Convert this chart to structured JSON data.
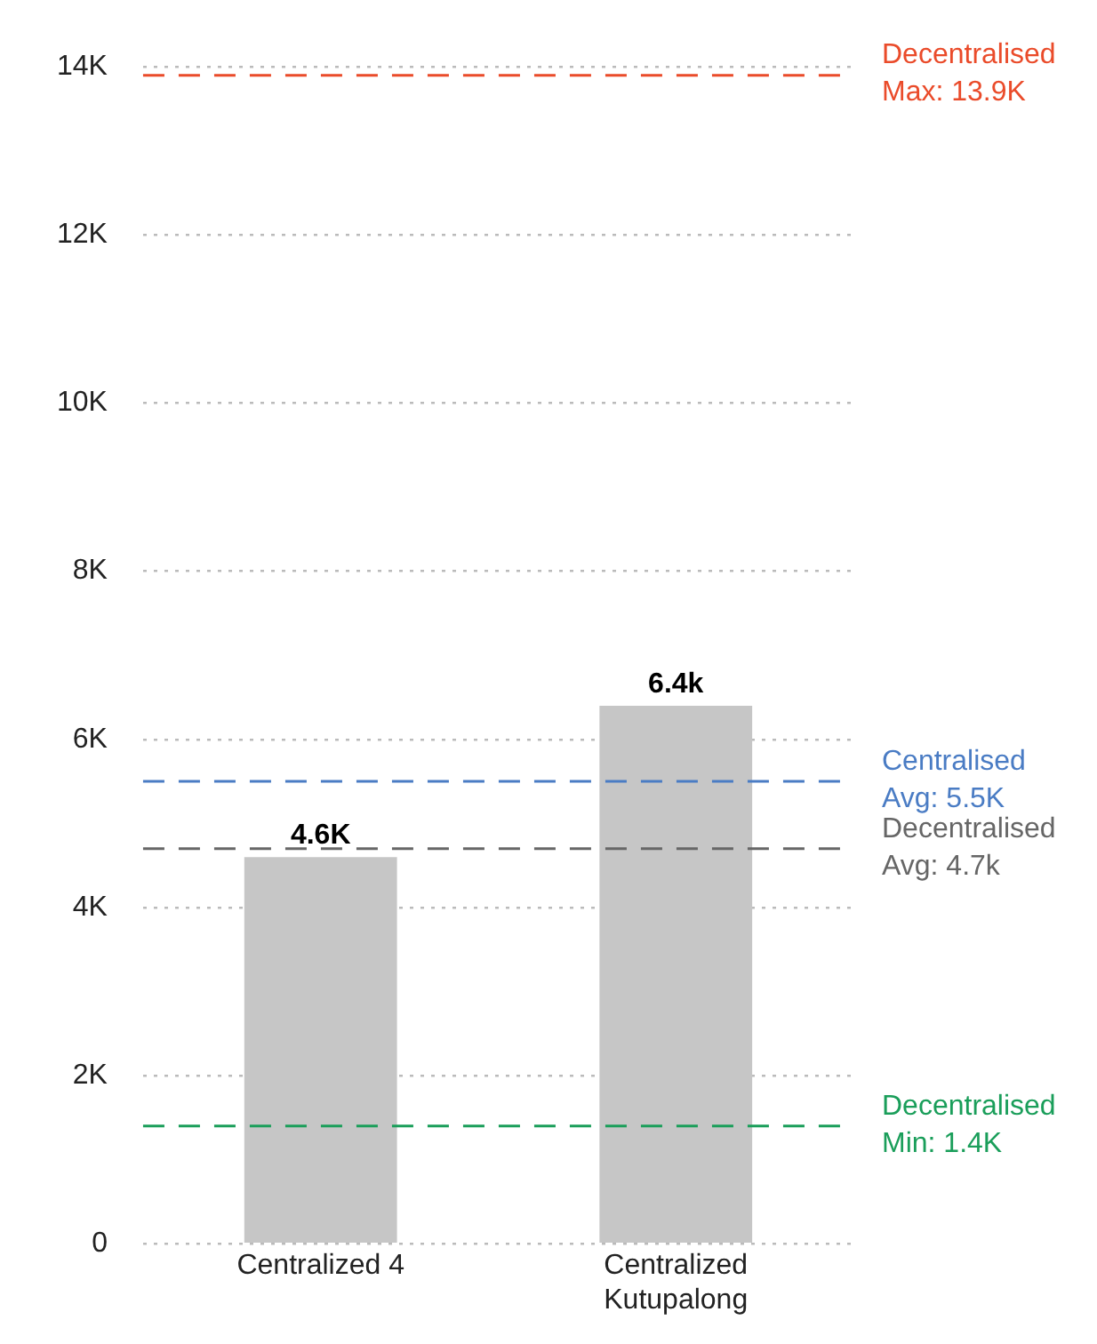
{
  "chart_data": {
    "type": "bar",
    "categories": [
      "Centralized 4",
      "Centralized Kutupalong"
    ],
    "values": [
      4600,
      6400
    ],
    "color": "#c6c6c6",
    "value_labels": [
      "4.6K",
      "6.4k"
    ],
    "ylim": [
      0,
      14000
    ],
    "yticks": [
      {
        "value": 0,
        "label": "0"
      },
      {
        "value": 2000,
        "label": "2K"
      },
      {
        "value": 4000,
        "label": "4K"
      },
      {
        "value": 6000,
        "label": "6K"
      },
      {
        "value": 8000,
        "label": "8K"
      },
      {
        "value": 10000,
        "label": "10K"
      },
      {
        "value": 12000,
        "label": "12K"
      },
      {
        "value": 14000,
        "label": "14K"
      }
    ],
    "grid": "y",
    "ref_lines": [
      {
        "axis": "y",
        "value": 13900,
        "label": "Decentralised Max: 13.9K",
        "color": "#ea4b2a",
        "line_style": "dashed"
      },
      {
        "axis": "y",
        "value": 5500,
        "label": "Centralised Avg: 5.5K",
        "color": "#4a7cc4",
        "line_style": "dashed"
      },
      {
        "axis": "y",
        "value": 4700,
        "label": "Decentralised Avg: 4.7k",
        "color": "#666666",
        "line_style": "dashed"
      },
      {
        "axis": "y",
        "value": 1400,
        "label": "Decentralised Min: 1.4K",
        "color": "#1a9e5a",
        "line_style": "dashed"
      }
    ]
  }
}
